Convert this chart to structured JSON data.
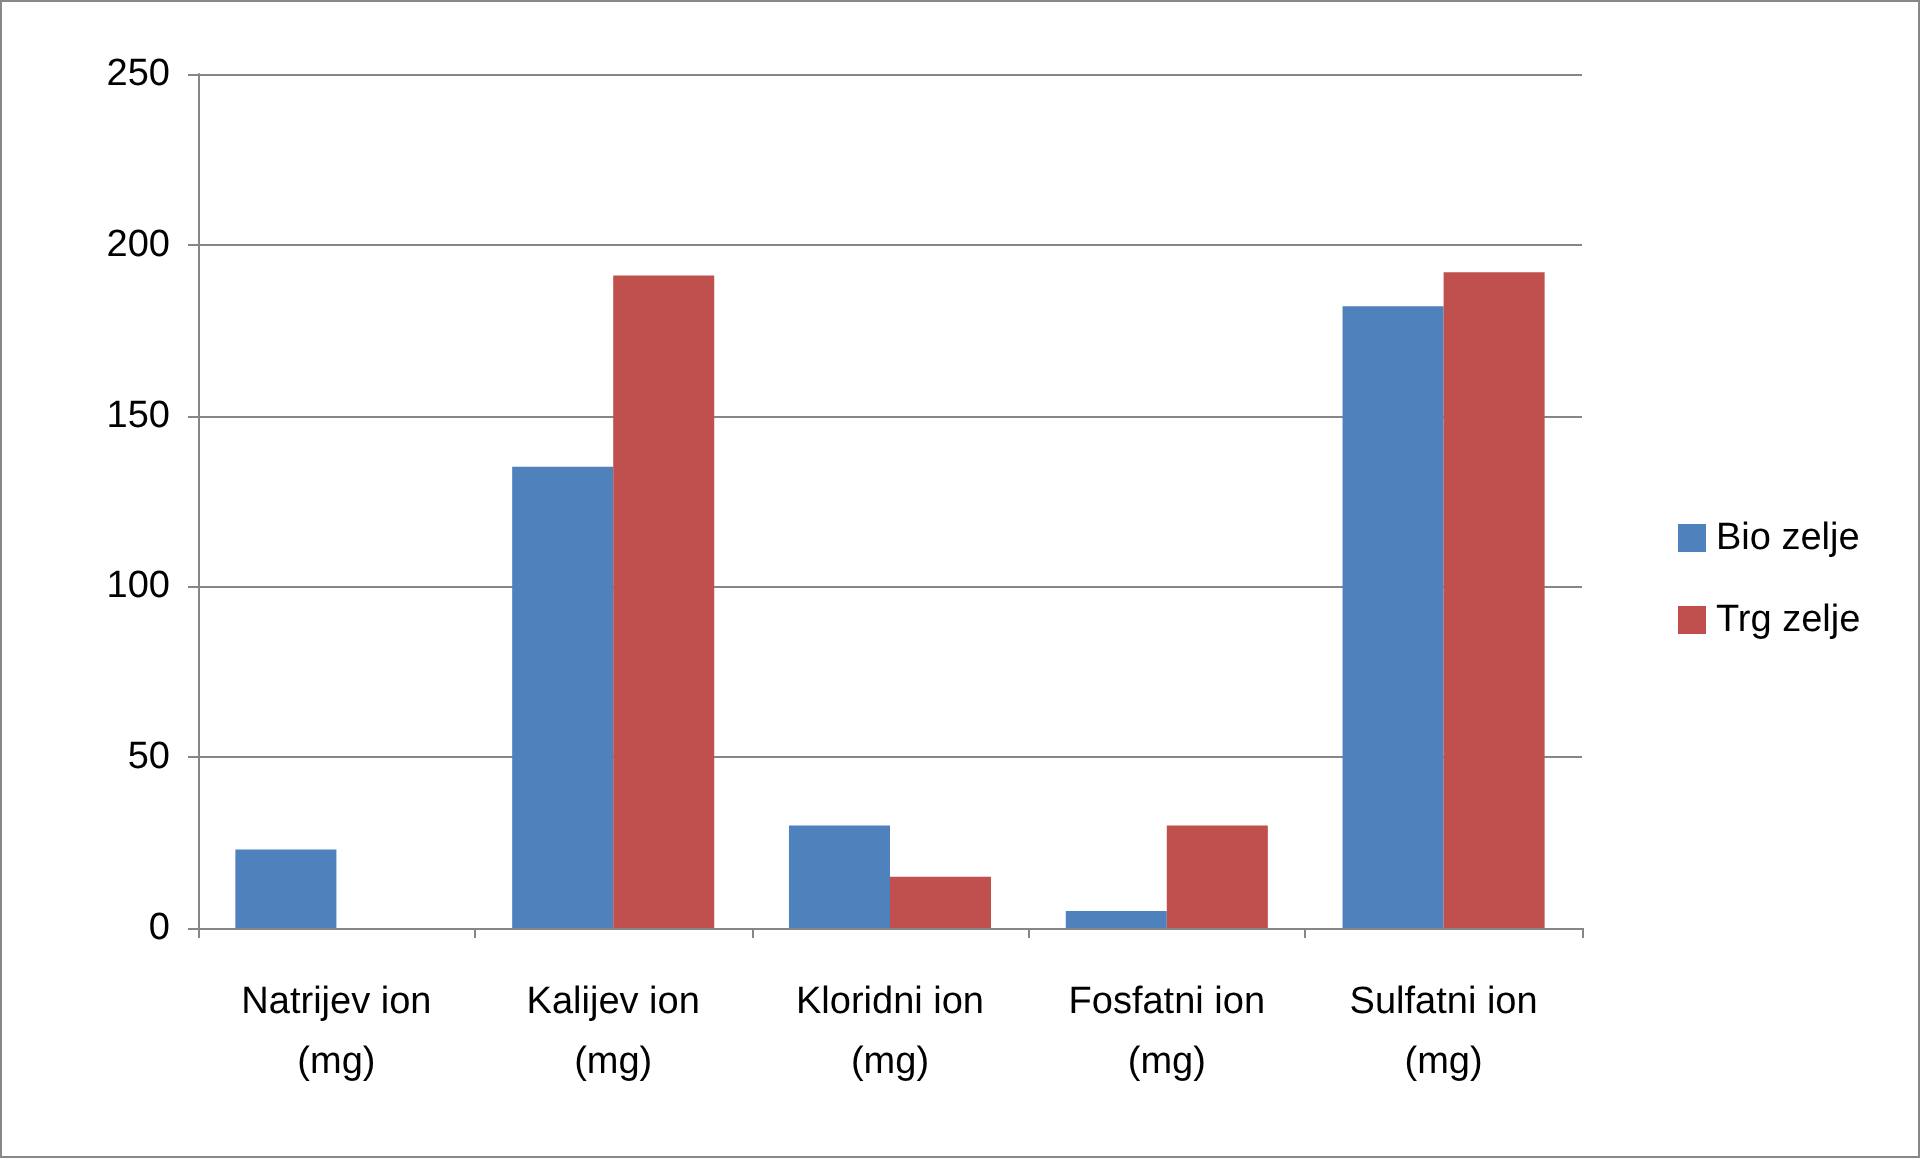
{
  "chart_data": {
    "type": "bar",
    "categories": [
      "Natrijev ion (mg)",
      "Kalijev ion (mg)",
      "Kloridni ion (mg)",
      "Fosfatni ion (mg)",
      "Sulfatni ion (mg)"
    ],
    "series": [
      {
        "name": "Bio zelje",
        "color": "#4f81bd",
        "values": [
          23,
          135,
          30,
          5,
          182
        ]
      },
      {
        "name": "Trg zelje",
        "color": "#c0504d",
        "values": [
          0,
          191,
          15,
          30,
          192
        ]
      }
    ],
    "ylim": [
      0,
      250
    ],
    "yticks": [
      0,
      50,
      100,
      150,
      200,
      250
    ],
    "grid": "y",
    "legend": "right"
  }
}
